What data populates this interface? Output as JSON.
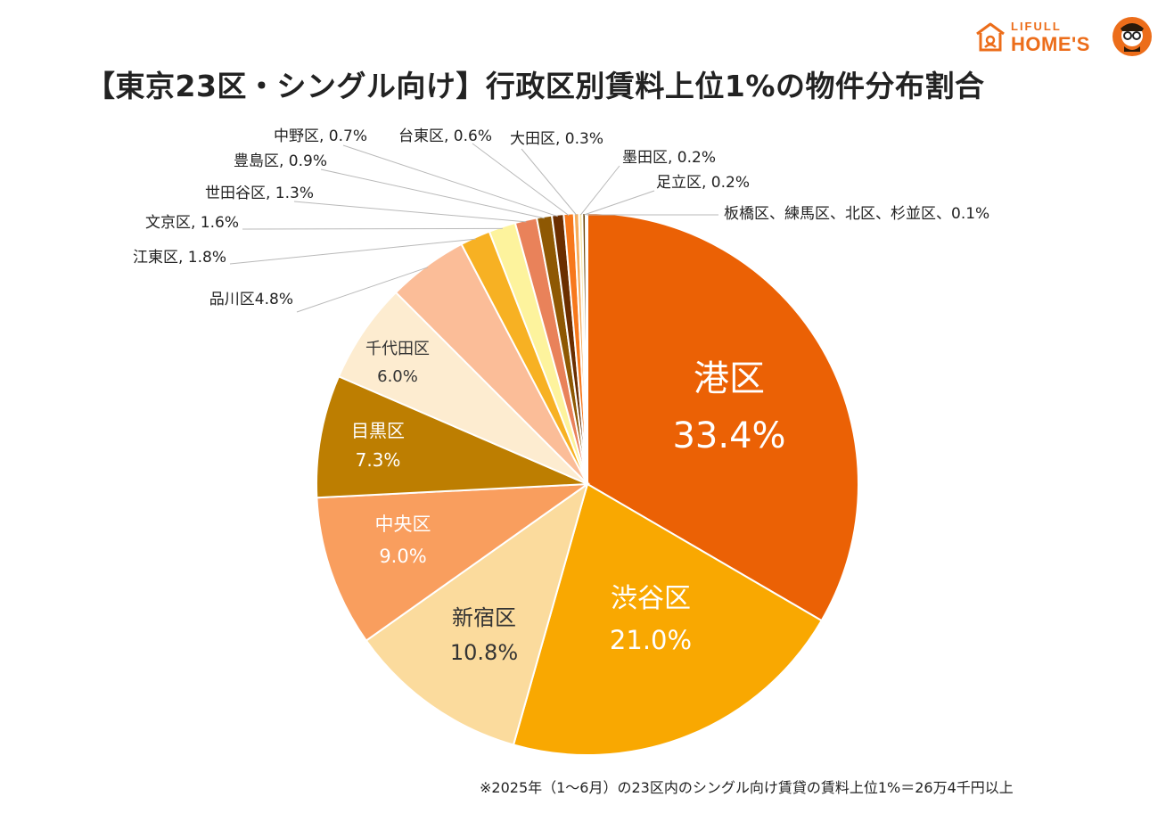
{
  "title": "【東京23区・シングル向け】行政区別賃料上位1%の物件分布割合",
  "footnote": "※2025年（1〜6月）の23区内のシングル向け賃貸の賃料上位1%＝26万4千円以上",
  "logo": {
    "small_text": "LIFULL",
    "big_text": "HOME'S",
    "brand_color": "#ec6d1a"
  },
  "chart_data": {
    "type": "pie",
    "title": "【東京23区・シングル向け】行政区別賃料上位1%の物件分布割合",
    "unit": "%",
    "slices": [
      {
        "name": "港区",
        "value": 33.4,
        "label_value": "33.4%",
        "color": "#eb6105",
        "label_style": "inside"
      },
      {
        "name": "渋谷区",
        "value": 21.0,
        "label_value": "21.0%",
        "color": "#f9a801",
        "label_style": "inside"
      },
      {
        "name": "新宿区",
        "value": 10.8,
        "label_value": "10.8%",
        "color": "#fbdb9d",
        "label_style": "inside"
      },
      {
        "name": "中央区",
        "value": 9.0,
        "label_value": "9.0%",
        "color": "#f99e5e",
        "label_style": "inside"
      },
      {
        "name": "目黒区",
        "value": 7.3,
        "label_value": "7.3%",
        "color": "#bd7e01",
        "label_style": "inside"
      },
      {
        "name": "千代田区",
        "value": 6.0,
        "label_value": "6.0%",
        "color": "#fdecd0",
        "label_style": "inside"
      },
      {
        "name": "品川区",
        "value": 4.8,
        "label_value": "4.8%",
        "color": "#fbbd98",
        "label_style": "outside",
        "label_text": "品川区4.8%"
      },
      {
        "name": "江東区",
        "value": 1.8,
        "label_value": "1.8%",
        "color": "#f7b123",
        "label_style": "outside",
        "label_text": "江東区, 1.8%"
      },
      {
        "name": "文京区",
        "value": 1.6,
        "label_value": "1.6%",
        "color": "#fdf39d",
        "label_style": "outside",
        "label_text": "文京区, 1.6%"
      },
      {
        "name": "世田谷区",
        "value": 1.3,
        "label_value": "1.3%",
        "color": "#e9825a",
        "label_style": "outside",
        "label_text": "世田谷区, 1.3%"
      },
      {
        "name": "豊島区",
        "value": 0.9,
        "label_value": "0.9%",
        "color": "#8e5803",
        "label_style": "outside",
        "label_text": "豊島区, 0.9%"
      },
      {
        "name": "中野区",
        "value": 0.7,
        "label_value": "0.7%",
        "color": "#6b2e00",
        "label_style": "outside",
        "label_text": "中野区, 0.7%"
      },
      {
        "name": "台東区",
        "value": 0.6,
        "label_value": "0.6%",
        "color": "#f7781c",
        "label_style": "outside",
        "label_text": "台東区, 0.6%"
      },
      {
        "name": "大田区",
        "value": 0.3,
        "label_value": "0.3%",
        "color": "#f6ad5c",
        "label_style": "outside",
        "label_text": "大田区, 0.3%"
      },
      {
        "name": "墨田区",
        "value": 0.2,
        "label_value": "0.2%",
        "color": "#f8e7a5",
        "label_style": "outside",
        "label_text": "墨田区, 0.2%"
      },
      {
        "name": "足立区",
        "value": 0.2,
        "label_value": "0.2%",
        "color": "#6e4a10",
        "label_style": "outside",
        "label_text": "足立区, 0.2%"
      },
      {
        "name": "板橋区、練馬区、北区、杉並区",
        "value": 0.1,
        "label_value": "0.1%",
        "color": "#c9b99a",
        "label_style": "outside",
        "label_text": "板橋区、練馬区、北区、杉並区、0.1%"
      }
    ]
  }
}
